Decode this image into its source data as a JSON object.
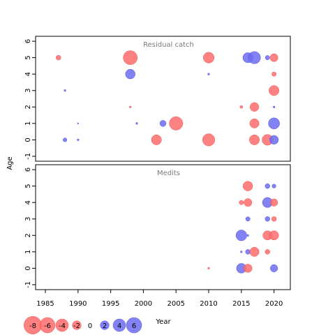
{
  "chart_data": {
    "type": "scatter",
    "xlabel": "Year",
    "ylabel": "Age",
    "xlim": [
      1983.5,
      2022.5
    ],
    "ylim": [
      -1.3,
      6.3
    ],
    "xticks": [
      1985,
      1990,
      1995,
      2000,
      2005,
      2010,
      2015,
      2020
    ],
    "yticks": [
      -1,
      0,
      1,
      2,
      3,
      4,
      5,
      6
    ],
    "colors": {
      "negative": "#FF6C6C",
      "positive": "#6C6CF0",
      "outline": "#888888"
    },
    "panels": [
      {
        "title": "Residual catch",
        "points": [
          {
            "x": 1987,
            "y": 5,
            "v": -0.6
          },
          {
            "x": 1998,
            "y": 5,
            "v": -5.0
          },
          {
            "x": 2010,
            "y": 5,
            "v": -3.0
          },
          {
            "x": 2016,
            "y": 5,
            "v": 2.6
          },
          {
            "x": 2017,
            "y": 5,
            "v": 3.8
          },
          {
            "x": 2019,
            "y": 5,
            "v": 0.5
          },
          {
            "x": 2020,
            "y": 5,
            "v": -1.6
          },
          {
            "x": 1998,
            "y": 4,
            "v": 2.4
          },
          {
            "x": 2010,
            "y": 4,
            "v": 0.1
          },
          {
            "x": 2020,
            "y": 4,
            "v": -0.5
          },
          {
            "x": 1988,
            "y": 3,
            "v": 0.1
          },
          {
            "x": 2020,
            "y": 3,
            "v": -2.6
          },
          {
            "x": 1998,
            "y": 2,
            "v": -0.1
          },
          {
            "x": 2015,
            "y": 2,
            "v": -0.2
          },
          {
            "x": 2017,
            "y": 2,
            "v": -2.0
          },
          {
            "x": 2020,
            "y": 2,
            "v": 0.1
          },
          {
            "x": 1990,
            "y": 1,
            "v": 0.05
          },
          {
            "x": 1999,
            "y": 1,
            "v": 0.1
          },
          {
            "x": 2003,
            "y": 1,
            "v": 1.0
          },
          {
            "x": 2005,
            "y": 1,
            "v": -4.6
          },
          {
            "x": 2017,
            "y": 1,
            "v": -2.2
          },
          {
            "x": 2020,
            "y": 1,
            "v": 3.2
          },
          {
            "x": 1988,
            "y": 0,
            "v": 0.4
          },
          {
            "x": 1990,
            "y": 0,
            "v": 0.1
          },
          {
            "x": 2002,
            "y": 0,
            "v": -2.6
          },
          {
            "x": 2010,
            "y": 0,
            "v": -3.8
          },
          {
            "x": 2017,
            "y": 0,
            "v": -2.6
          },
          {
            "x": 2019,
            "y": 0,
            "v": -3.0
          },
          {
            "x": 2020,
            "y": 0,
            "v": 2.0
          }
        ]
      },
      {
        "title": "Medits",
        "points": [
          {
            "x": 2016,
            "y": 5,
            "v": -2.4
          },
          {
            "x": 2019,
            "y": 5,
            "v": 0.6
          },
          {
            "x": 2020,
            "y": 5,
            "v": 0.4
          },
          {
            "x": 2015,
            "y": 4,
            "v": -0.5
          },
          {
            "x": 2016,
            "y": 4,
            "v": -1.6
          },
          {
            "x": 2019,
            "y": 4,
            "v": 2.6
          },
          {
            "x": 2020,
            "y": 4,
            "v": -1.4
          },
          {
            "x": 2016,
            "y": 3,
            "v": 0.5
          },
          {
            "x": 2019,
            "y": 3,
            "v": 0.6
          },
          {
            "x": 2020,
            "y": 3,
            "v": -0.6
          },
          {
            "x": 2015,
            "y": 2,
            "v": 3.0
          },
          {
            "x": 2016,
            "y": 2,
            "v": 0.1
          },
          {
            "x": 2019,
            "y": 2,
            "v": -2.2
          },
          {
            "x": 2020,
            "y": 2,
            "v": -2.2
          },
          {
            "x": 2015,
            "y": 1,
            "v": 0.1
          },
          {
            "x": 2016,
            "y": 1,
            "v": 0.6
          },
          {
            "x": 2017,
            "y": 1,
            "v": -2.2
          },
          {
            "x": 2019,
            "y": 1,
            "v": -0.6
          },
          {
            "x": 2010,
            "y": 0,
            "v": -0.1
          },
          {
            "x": 2015,
            "y": 0,
            "v": 2.4
          },
          {
            "x": 2016,
            "y": 0,
            "v": -1.8
          },
          {
            "x": 2020,
            "y": 0,
            "v": 1.4
          }
        ]
      }
    ],
    "legend": {
      "position": "bottom-left",
      "values": [
        -8,
        -6,
        -4,
        -2,
        0,
        2,
        4,
        6
      ],
      "labels": [
        "-8",
        "-6",
        "-4",
        "-2",
        "0",
        "2",
        "4",
        "6"
      ]
    }
  }
}
